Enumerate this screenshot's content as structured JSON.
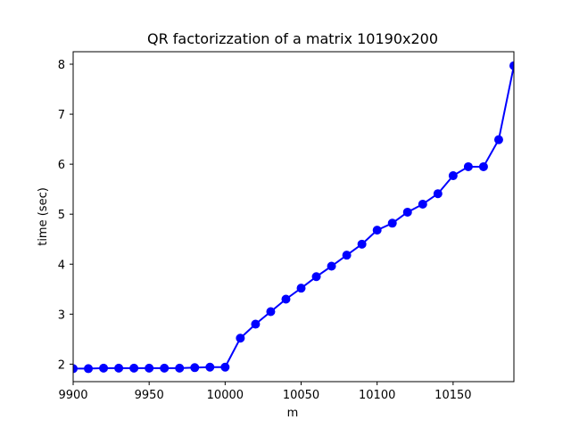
{
  "chart_data": {
    "type": "line",
    "title": "QR factorizzation of a matrix 10190x200",
    "xlabel": "m",
    "ylabel": "time (sec)",
    "xlim": [
      9900,
      10190
    ],
    "ylim": [
      1.65,
      8.25
    ],
    "xticks": [
      9900,
      9950,
      10000,
      10050,
      10100,
      10150
    ],
    "yticks": [
      2,
      3,
      4,
      5,
      6,
      7,
      8
    ],
    "grid": false,
    "legend": false,
    "series": [
      {
        "color": "#0000ff",
        "marker": "circle",
        "x": [
          9900,
          9910,
          9920,
          9930,
          9940,
          9950,
          9960,
          9970,
          9980,
          9990,
          10000,
          10010,
          10020,
          10030,
          10040,
          10050,
          10060,
          10070,
          10080,
          10090,
          10100,
          10110,
          10120,
          10130,
          10140,
          10150,
          10160,
          10170,
          10180,
          10190
        ],
        "y": [
          1.91,
          1.91,
          1.92,
          1.92,
          1.92,
          1.92,
          1.92,
          1.92,
          1.93,
          1.94,
          1.94,
          2.52,
          2.8,
          3.05,
          3.3,
          3.52,
          3.75,
          3.96,
          4.18,
          4.4,
          4.68,
          4.82,
          5.04,
          5.2,
          5.41,
          5.77,
          5.95,
          5.95,
          6.49,
          7.97
        ]
      }
    ]
  }
}
